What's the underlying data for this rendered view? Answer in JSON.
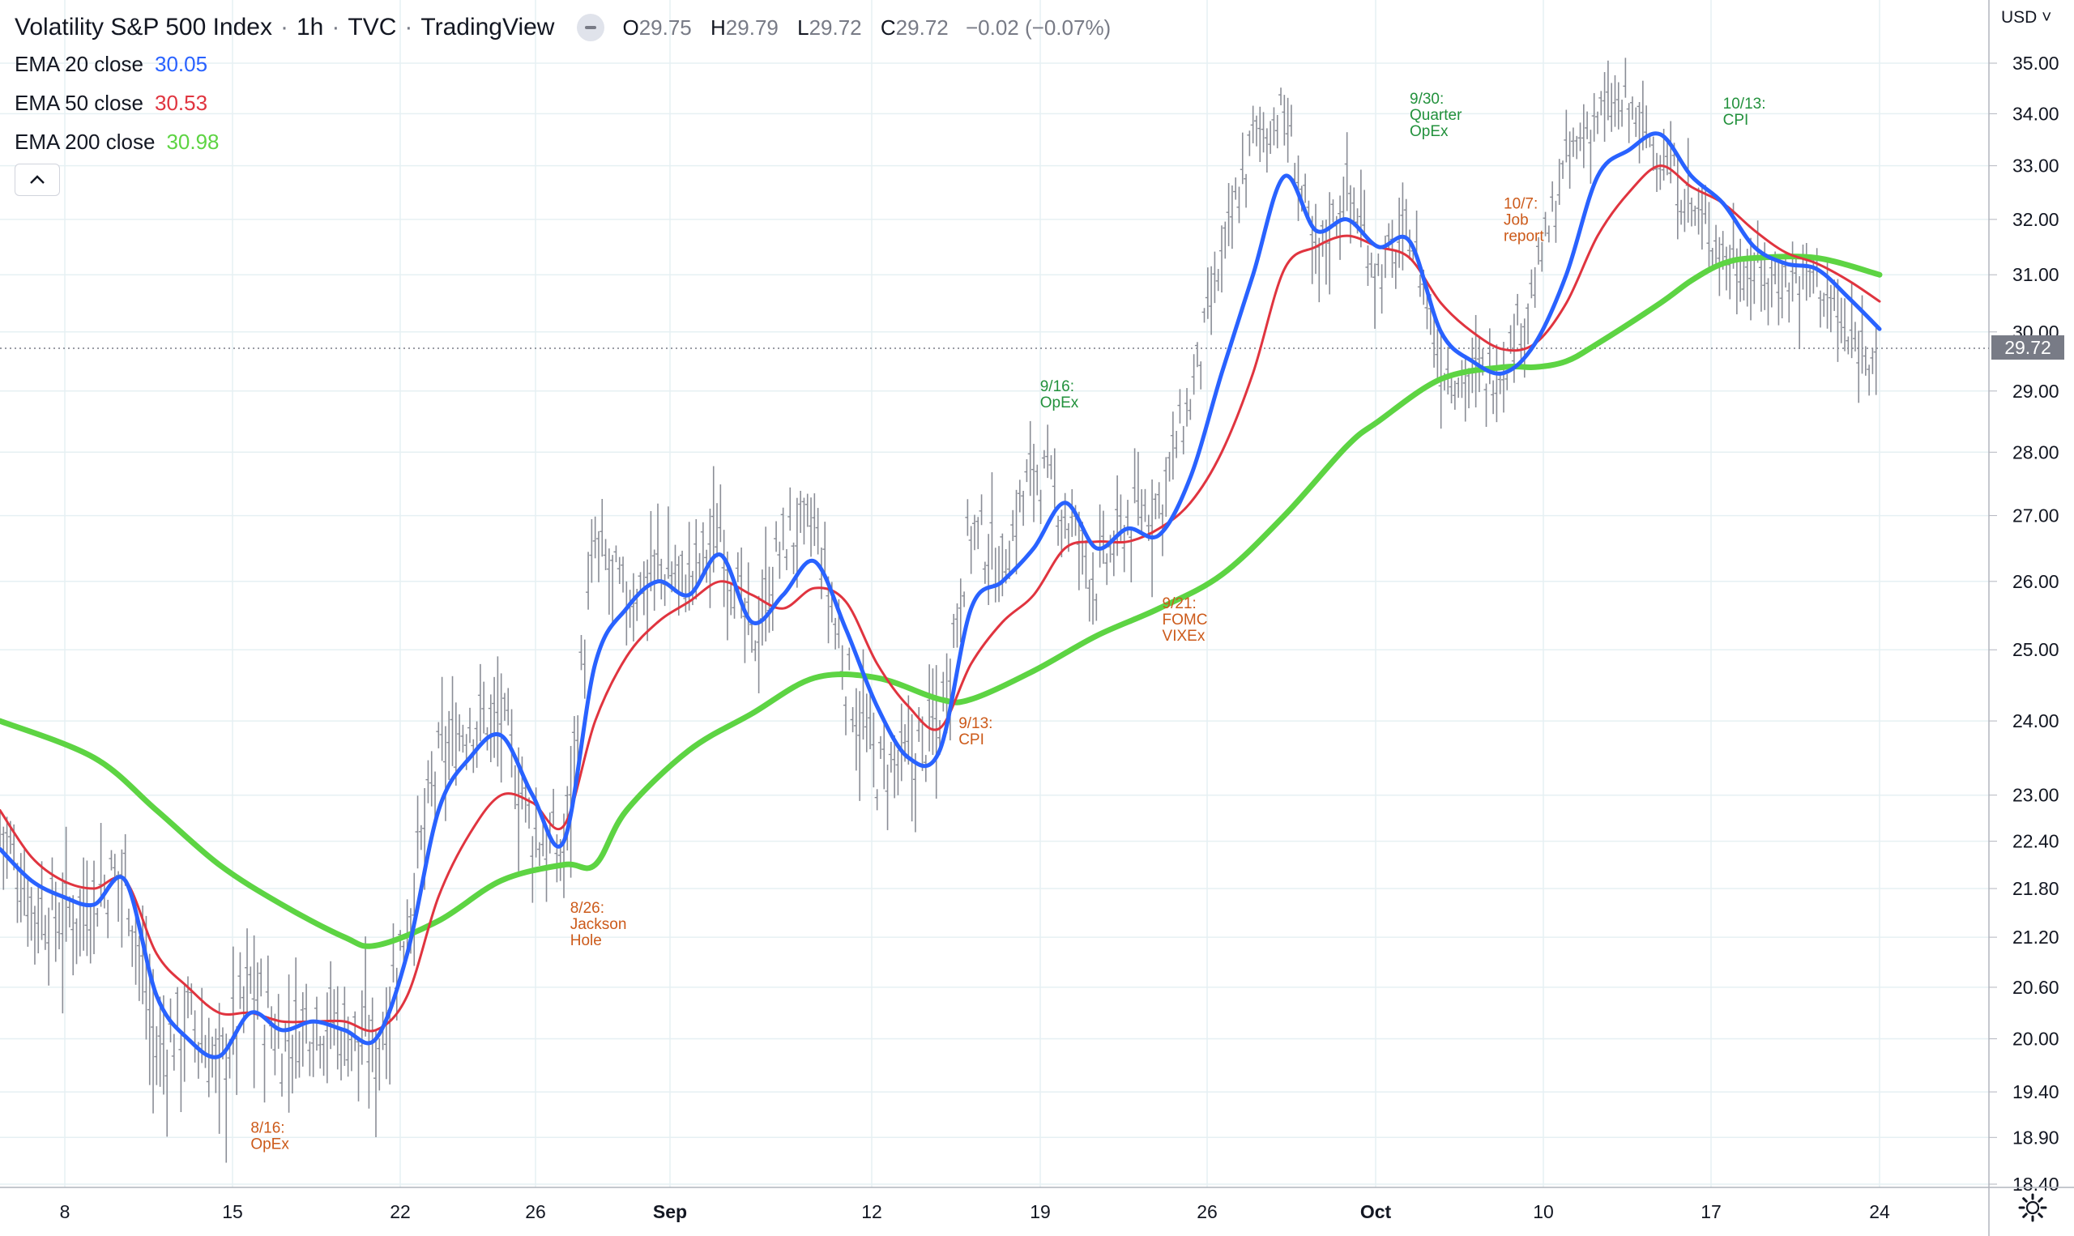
{
  "header": {
    "title": "Volatility S&P 500 Index",
    "interval": "1h",
    "source": "TVC",
    "platform": "TradingView",
    "ohlc": {
      "o_label": "O",
      "o": "29.75",
      "h_label": "H",
      "h": "29.79",
      "l_label": "L",
      "l": "29.72",
      "c_label": "C",
      "c": "29.72",
      "change": "−0.02 (−0.07%)"
    }
  },
  "legend": [
    {
      "label": "EMA 20 close",
      "value": "30.05",
      "color": "#2962ff"
    },
    {
      "label": "EMA 50 close",
      "value": "30.53",
      "color": "#e0343f"
    },
    {
      "label": "EMA 200 close",
      "value": "30.98",
      "color": "#5dd443"
    }
  ],
  "price_axis": {
    "currency": "USD",
    "last_price": "29.72",
    "ticks": [
      "35.00",
      "34.00",
      "33.00",
      "32.00",
      "31.00",
      "30.00",
      "29.00",
      "28.00",
      "27.00",
      "26.00",
      "25.00",
      "24.00",
      "23.00",
      "22.40",
      "21.80",
      "21.20",
      "20.60",
      "20.00",
      "19.40",
      "18.90",
      "18.40"
    ]
  },
  "chart_data": {
    "type": "line",
    "title": "Volatility S&P 500 Index · 1h · TVC",
    "x_labels": [
      "8",
      "15",
      "22",
      "26",
      "Sep",
      "12",
      "19",
      "26",
      "Oct",
      "10",
      "17",
      "24"
    ],
    "ylim": [
      18.4,
      35.0
    ],
    "y_scale": "log",
    "series": [
      {
        "name": "EMA 20 close",
        "color": "#2962ff",
        "points": [
          [
            0,
            22.3
          ],
          [
            1,
            21.9
          ],
          [
            2,
            21.7
          ],
          [
            3,
            21.6
          ],
          [
            4,
            21.9
          ],
          [
            5,
            20.5
          ],
          [
            6,
            20.0
          ],
          [
            7,
            19.8
          ],
          [
            8,
            20.3
          ],
          [
            9,
            20.1
          ],
          [
            10,
            20.2
          ],
          [
            11,
            20.1
          ],
          [
            12,
            20.0
          ],
          [
            13,
            21.0
          ],
          [
            14,
            22.8
          ],
          [
            15,
            23.5
          ],
          [
            16,
            23.8
          ],
          [
            17,
            23.0
          ],
          [
            18,
            22.4
          ],
          [
            19,
            24.8
          ],
          [
            20,
            25.6
          ],
          [
            21,
            26.0
          ],
          [
            22,
            25.8
          ],
          [
            23,
            26.4
          ],
          [
            24,
            25.4
          ],
          [
            25,
            25.8
          ],
          [
            26,
            26.3
          ],
          [
            27,
            25.3
          ],
          [
            28,
            24.2
          ],
          [
            29,
            23.5
          ],
          [
            30,
            23.6
          ],
          [
            31,
            25.6
          ],
          [
            32,
            26.0
          ],
          [
            33,
            26.5
          ],
          [
            34,
            27.2
          ],
          [
            35,
            26.5
          ],
          [
            36,
            26.8
          ],
          [
            37,
            26.7
          ],
          [
            38,
            27.6
          ],
          [
            39,
            29.3
          ],
          [
            40,
            31.0
          ],
          [
            41,
            32.8
          ],
          [
            42,
            31.8
          ],
          [
            43,
            32.0
          ],
          [
            44,
            31.5
          ],
          [
            45,
            31.6
          ],
          [
            46,
            30.0
          ],
          [
            47,
            29.5
          ],
          [
            48,
            29.3
          ],
          [
            49,
            29.8
          ],
          [
            50,
            31.0
          ],
          [
            51,
            32.8
          ],
          [
            52,
            33.3
          ],
          [
            53,
            33.6
          ],
          [
            54,
            32.8
          ],
          [
            55,
            32.3
          ],
          [
            56,
            31.5
          ],
          [
            57,
            31.2
          ],
          [
            58,
            31.1
          ],
          [
            59,
            30.6
          ],
          [
            60,
            30.05
          ]
        ]
      },
      {
        "name": "EMA 50 close",
        "color": "#e0343f",
        "points": [
          [
            0,
            22.8
          ],
          [
            1,
            22.2
          ],
          [
            2,
            21.9
          ],
          [
            3,
            21.8
          ],
          [
            4,
            21.9
          ],
          [
            5,
            21.0
          ],
          [
            6,
            20.6
          ],
          [
            7,
            20.3
          ],
          [
            8,
            20.3
          ],
          [
            9,
            20.2
          ],
          [
            10,
            20.2
          ],
          [
            11,
            20.2
          ],
          [
            12,
            20.1
          ],
          [
            13,
            20.5
          ],
          [
            14,
            21.7
          ],
          [
            15,
            22.5
          ],
          [
            16,
            23.0
          ],
          [
            17,
            22.9
          ],
          [
            18,
            22.6
          ],
          [
            19,
            24.0
          ],
          [
            20,
            24.9
          ],
          [
            21,
            25.4
          ],
          [
            22,
            25.7
          ],
          [
            23,
            26.0
          ],
          [
            24,
            25.8
          ],
          [
            25,
            25.6
          ],
          [
            26,
            25.9
          ],
          [
            27,
            25.7
          ],
          [
            28,
            24.8
          ],
          [
            29,
            24.2
          ],
          [
            30,
            23.9
          ],
          [
            31,
            24.8
          ],
          [
            32,
            25.4
          ],
          [
            33,
            25.8
          ],
          [
            34,
            26.5
          ],
          [
            35,
            26.6
          ],
          [
            36,
            26.6
          ],
          [
            37,
            26.8
          ],
          [
            38,
            27.2
          ],
          [
            39,
            28.0
          ],
          [
            40,
            29.3
          ],
          [
            41,
            31.1
          ],
          [
            42,
            31.5
          ],
          [
            43,
            31.7
          ],
          [
            44,
            31.5
          ],
          [
            45,
            31.3
          ],
          [
            46,
            30.5
          ],
          [
            47,
            30.0
          ],
          [
            48,
            29.7
          ],
          [
            49,
            29.8
          ],
          [
            50,
            30.5
          ],
          [
            51,
            31.7
          ],
          [
            52,
            32.5
          ],
          [
            53,
            33.0
          ],
          [
            54,
            32.6
          ],
          [
            55,
            32.3
          ],
          [
            56,
            31.8
          ],
          [
            57,
            31.4
          ],
          [
            58,
            31.2
          ],
          [
            59,
            30.9
          ],
          [
            60,
            30.53
          ]
        ]
      },
      {
        "name": "EMA 200 close",
        "color": "#5dd443",
        "points": [
          [
            0,
            24.0
          ],
          [
            3,
            23.5
          ],
          [
            5,
            22.8
          ],
          [
            7,
            22.1
          ],
          [
            9,
            21.6
          ],
          [
            11,
            21.2
          ],
          [
            12,
            21.1
          ],
          [
            14,
            21.4
          ],
          [
            16,
            21.9
          ],
          [
            18,
            22.1
          ],
          [
            19,
            22.1
          ],
          [
            20,
            22.8
          ],
          [
            22,
            23.6
          ],
          [
            24,
            24.1
          ],
          [
            26,
            24.6
          ],
          [
            28,
            24.6
          ],
          [
            30,
            24.3
          ],
          [
            31,
            24.3
          ],
          [
            33,
            24.7
          ],
          [
            35,
            25.2
          ],
          [
            37,
            25.6
          ],
          [
            39,
            26.1
          ],
          [
            41,
            27.0
          ],
          [
            43,
            28.1
          ],
          [
            44,
            28.5
          ],
          [
            46,
            29.2
          ],
          [
            48,
            29.4
          ],
          [
            49,
            29.4
          ],
          [
            50,
            29.5
          ],
          [
            51,
            29.8
          ],
          [
            53,
            30.5
          ],
          [
            54,
            30.9
          ],
          [
            55,
            31.2
          ],
          [
            56,
            31.3
          ],
          [
            58,
            31.3
          ],
          [
            60,
            31.0
          ]
        ]
      },
      {
        "name": "VIX 1h close",
        "color": "#787b86",
        "points": [
          [
            0,
            22.6
          ],
          [
            1,
            21.6
          ],
          [
            2,
            21.4
          ],
          [
            3,
            21.7
          ],
          [
            4,
            22.0
          ],
          [
            5,
            19.8
          ],
          [
            6,
            20.2
          ],
          [
            7,
            19.6
          ],
          [
            8,
            20.6
          ],
          [
            9,
            19.9
          ],
          [
            10,
            20.3
          ],
          [
            11,
            20.1
          ],
          [
            12,
            19.8
          ],
          [
            13,
            21.4
          ],
          [
            14,
            23.4
          ],
          [
            15,
            24.0
          ],
          [
            16,
            24.0
          ],
          [
            17,
            22.5
          ],
          [
            18,
            22.2
          ],
          [
            19,
            26.5
          ],
          [
            20,
            25.7
          ],
          [
            21,
            26.2
          ],
          [
            22,
            26.0
          ],
          [
            23,
            26.8
          ],
          [
            24,
            25.0
          ],
          [
            25,
            26.6
          ],
          [
            26,
            26.8
          ],
          [
            27,
            24.6
          ],
          [
            28,
            23.3
          ],
          [
            29,
            23.4
          ],
          [
            30,
            24.0
          ],
          [
            31,
            26.8
          ],
          [
            32,
            26.2
          ],
          [
            33,
            27.8
          ],
          [
            34,
            27.0
          ],
          [
            35,
            26.0
          ],
          [
            36,
            26.9
          ],
          [
            37,
            27.2
          ],
          [
            38,
            28.8
          ],
          [
            39,
            31.2
          ],
          [
            40,
            33.5
          ],
          [
            41,
            34.0
          ],
          [
            42,
            31.2
          ],
          [
            43,
            32.6
          ],
          [
            44,
            31.0
          ],
          [
            45,
            31.8
          ],
          [
            46,
            29.4
          ],
          [
            47,
            29.2
          ],
          [
            48,
            29.4
          ],
          [
            49,
            30.8
          ],
          [
            50,
            33.0
          ],
          [
            51,
            34.0
          ],
          [
            52,
            34.1
          ],
          [
            53,
            33.2
          ],
          [
            54,
            32.2
          ],
          [
            55,
            31.4
          ],
          [
            56,
            31.0
          ],
          [
            57,
            30.9
          ],
          [
            58,
            31.0
          ],
          [
            59,
            29.8
          ],
          [
            60,
            29.72
          ]
        ]
      }
    ],
    "annotations": [
      {
        "lines": [
          "8/16:",
          "OpEx"
        ],
        "color": "#cc5a1a",
        "x": 8,
        "y": 18.95
      },
      {
        "lines": [
          "8/26:",
          "Jackson",
          "Hole"
        ],
        "color": "#cc5a1a",
        "x": 18.2,
        "y": 21.5
      },
      {
        "lines": [
          "9/13:",
          "CPI"
        ],
        "color": "#cc5a1a",
        "x": 30.6,
        "y": 23.9
      },
      {
        "lines": [
          "9/16:",
          "OpEx"
        ],
        "color": "#22913c",
        "x": 33.2,
        "y": 29.0
      },
      {
        "lines": [
          "9/21:",
          "FOMC",
          "VIXEx"
        ],
        "color": "#cc5a1a",
        "x": 37.1,
        "y": 25.6
      },
      {
        "lines": [
          "9/30:",
          "Quarter",
          "OpEx"
        ],
        "color": "#22913c",
        "x": 45.0,
        "y": 34.2
      },
      {
        "lines": [
          "10/7:",
          "Job",
          "report"
        ],
        "color": "#cc5a1a",
        "x": 48.0,
        "y": 32.2
      },
      {
        "lines": [
          "10/13:",
          "CPI"
        ],
        "color": "#22913c",
        "x": 55.0,
        "y": 34.1
      }
    ]
  }
}
